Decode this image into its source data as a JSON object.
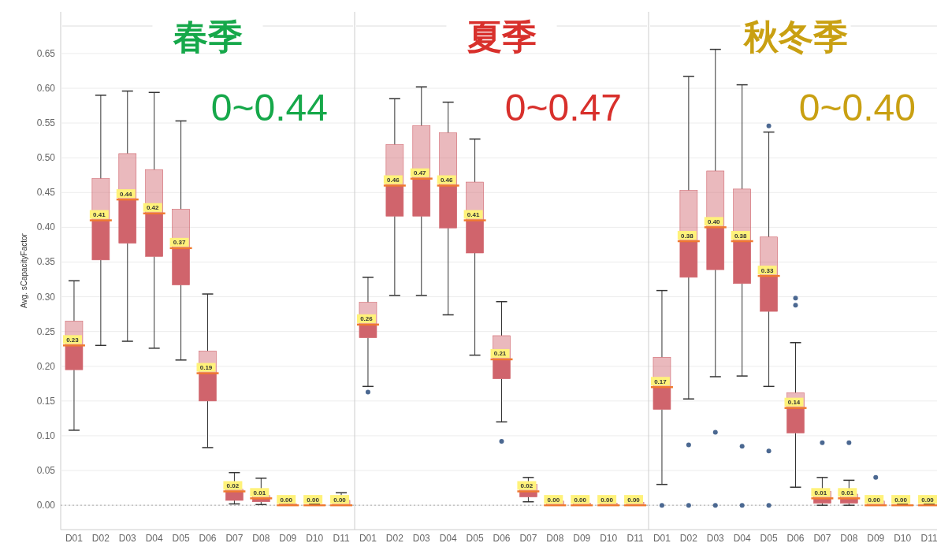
{
  "chart_data": [
    {
      "type": "box",
      "title": "春季",
      "ylabel": "Avg. sCapacityFactor",
      "annotations": [
        "0~0.44",
        {
          "text": "0.23",
          "x": "D01",
          "y": 0.23
        },
        {
          "text": "0.41",
          "x": "D02",
          "y": 0.41
        },
        {
          "text": "0.44",
          "x": "D03",
          "y": 0.44
        },
        {
          "text": "0.42",
          "x": "D04",
          "y": 0.42
        },
        {
          "text": "0.37",
          "x": "D05",
          "y": 0.37
        },
        {
          "text": "0.19",
          "x": "D06",
          "y": 0.19
        },
        {
          "text": "0.02",
          "x": "D07",
          "y": 0.02
        },
        {
          "text": "0.01",
          "x": "D08",
          "y": 0.01
        },
        {
          "text": "0.00",
          "x": "D09",
          "y": 0.0
        },
        {
          "text": "0.00",
          "x": "D10",
          "y": 0.0
        },
        {
          "text": "0.00",
          "x": "D11",
          "y": 0.0
        }
      ],
      "categories": [
        "D01",
        "D02",
        "D03",
        "D04",
        "D05",
        "D06",
        "D07",
        "D08",
        "D09",
        "D10",
        "D11"
      ],
      "ylim": [
        -0.035,
        0.71
      ],
      "yticks": [
        {
          "value": 0,
          "label": "0.00"
        },
        {
          "value": 0.05,
          "label": "0.05"
        },
        {
          "value": 0.1,
          "label": "0.10"
        },
        {
          "value": 0.15,
          "label": "0.15"
        },
        {
          "value": 0.2,
          "label": "0.20"
        },
        {
          "value": 0.25,
          "label": "0.25"
        },
        {
          "value": 0.3,
          "label": "0.30"
        },
        {
          "value": 0.35,
          "label": "0.35"
        },
        {
          "value": 0.4,
          "label": "0.40"
        },
        {
          "value": 0.45,
          "label": "0.45"
        },
        {
          "value": 0.5,
          "label": "0.50"
        },
        {
          "value": 0.55,
          "label": "0.55"
        },
        {
          "value": 0.6,
          "label": "0.60"
        },
        {
          "value": 0.65,
          "label": "0.65"
        }
      ],
      "grid": "y",
      "ref_lines": [
        {
          "axis": "y",
          "value": 0,
          "line_style": "dotted"
        }
      ],
      "series": [
        {
          "color": "#d0646c",
          "boxes": [
            {
              "low": 0.108,
              "q1": 0.195,
              "median": 0.23,
              "q3": 0.265,
              "high": 0.323
            },
            {
              "low": 0.23,
              "q1": 0.353,
              "median": 0.41,
              "q3": 0.47,
              "high": 0.59
            },
            {
              "low": 0.236,
              "q1": 0.377,
              "median": 0.44,
              "q3": 0.506,
              "high": 0.596
            },
            {
              "low": 0.226,
              "q1": 0.358,
              "median": 0.42,
              "q3": 0.483,
              "high": 0.594
            },
            {
              "low": 0.209,
              "q1": 0.317,
              "median": 0.37,
              "q3": 0.426,
              "high": 0.553
            },
            {
              "low": 0.083,
              "q1": 0.15,
              "median": 0.19,
              "q3": 0.222,
              "high": 0.304
            },
            {
              "low": 0.002,
              "q1": 0.007,
              "median": 0.02,
              "q3": 0.023,
              "high": 0.047
            },
            {
              "low": 0.001,
              "q1": 0.005,
              "median": 0.01,
              "q3": 0.014,
              "high": 0.039
            },
            {
              "low": 0,
              "q1": 0,
              "median": 0.0,
              "q3": 0.002,
              "high": 0.003
            },
            {
              "low": 0,
              "q1": 0,
              "median": 0.0,
              "q3": 0.001,
              "high": 0.002
            },
            {
              "low": 0,
              "q1": 0,
              "median": 0.0,
              "q3": 0.007,
              "high": 0.018
            }
          ]
        }
      ]
    },
    {
      "type": "box",
      "title": "夏季",
      "annotations": [
        "0~0.47",
        {
          "text": "0.26",
          "x": "D01",
          "y": 0.26
        },
        {
          "text": "0.46",
          "x": "D02",
          "y": 0.46
        },
        {
          "text": "0.47",
          "x": "D03",
          "y": 0.47
        },
        {
          "text": "0.46",
          "x": "D04",
          "y": 0.46
        },
        {
          "text": "0.41",
          "x": "D05",
          "y": 0.41
        },
        {
          "text": "0.21",
          "x": "D06",
          "y": 0.21
        },
        {
          "text": "0.02",
          "x": "D07",
          "y": 0.02
        },
        {
          "text": "0.00",
          "x": "D08",
          "y": 0.0
        },
        {
          "text": "0.00",
          "x": "D09",
          "y": 0.0
        },
        {
          "text": "0.00",
          "x": "D10",
          "y": 0.0
        },
        {
          "text": "0.00",
          "x": "D11",
          "y": 0.0
        }
      ],
      "categories": [
        "D01",
        "D02",
        "D03",
        "D04",
        "D05",
        "D06",
        "D07",
        "D08",
        "D09",
        "D10",
        "D11"
      ],
      "ylim": [
        -0.035,
        0.71
      ],
      "yticks": [
        0,
        0.05,
        0.1,
        0.15,
        0.2,
        0.25,
        0.3,
        0.35,
        0.4,
        0.45,
        0.5,
        0.55,
        0.6,
        0.65
      ],
      "tick_labels": "x",
      "grid": "y",
      "ref_lines": [
        {
          "axis": "y",
          "value": 0,
          "line_style": "dotted"
        }
      ],
      "series": [
        {
          "color": "#d0646c",
          "boxes": [
            {
              "low": 0.171,
              "q1": 0.241,
              "median": 0.26,
              "q3": 0.292,
              "high": 0.328,
              "outliers": [
                0.163
              ]
            },
            {
              "low": 0.302,
              "q1": 0.416,
              "median": 0.46,
              "q3": 0.519,
              "high": 0.585
            },
            {
              "low": 0.302,
              "q1": 0.416,
              "median": 0.47,
              "q3": 0.546,
              "high": 0.602
            },
            {
              "low": 0.274,
              "q1": 0.399,
              "median": 0.46,
              "q3": 0.536,
              "high": 0.58
            },
            {
              "low": 0.216,
              "q1": 0.363,
              "median": 0.41,
              "q3": 0.465,
              "high": 0.527
            },
            {
              "low": 0.12,
              "q1": 0.182,
              "median": 0.21,
              "q3": 0.244,
              "high": 0.293,
              "outliers": [
                0.092
              ]
            },
            {
              "low": 0.005,
              "q1": 0.012,
              "median": 0.02,
              "q3": 0.03,
              "high": 0.04
            },
            {
              "low": 0,
              "q1": 0,
              "median": 0.0,
              "q3": 0.006,
              "high": 0.008
            },
            {
              "low": 0,
              "q1": 0,
              "median": 0.0,
              "q3": 0.003,
              "high": 0.005
            },
            {
              "low": 0,
              "q1": 0,
              "median": 0.0,
              "q3": 0.003,
              "high": 0.005
            },
            {
              "low": 0,
              "q1": 0,
              "median": 0.0,
              "q3": 0.004,
              "high": 0.006
            }
          ]
        }
      ]
    },
    {
      "type": "box",
      "title": "秋冬季",
      "annotations": [
        "0~0.40",
        {
          "text": "0.17",
          "x": "D01",
          "y": 0.17
        },
        {
          "text": "0.38",
          "x": "D02",
          "y": 0.38
        },
        {
          "text": "0.40",
          "x": "D03",
          "y": 0.4
        },
        {
          "text": "0.38",
          "x": "D04",
          "y": 0.38
        },
        {
          "text": "0.33",
          "x": "D05",
          "y": 0.33
        },
        {
          "text": "0.14",
          "x": "D06",
          "y": 0.14
        },
        {
          "text": "0.01",
          "x": "D07",
          "y": 0.01
        },
        {
          "text": "0.01",
          "x": "D08",
          "y": 0.01
        },
        {
          "text": "0.00",
          "x": "D09",
          "y": 0.0
        },
        {
          "text": "0.00",
          "x": "D10",
          "y": 0.0
        },
        {
          "text": "0.00",
          "x": "D11",
          "y": 0.0
        }
      ],
      "categories": [
        "D01",
        "D02",
        "D03",
        "D04",
        "D05",
        "D06",
        "D07",
        "D08",
        "D09",
        "D10",
        "D11"
      ],
      "ylim": [
        -0.035,
        0.71
      ],
      "yticks": [
        0,
        0.05,
        0.1,
        0.15,
        0.2,
        0.25,
        0.3,
        0.35,
        0.4,
        0.45,
        0.5,
        0.55,
        0.6,
        0.65
      ],
      "tick_labels": "x",
      "grid": "y",
      "ref_lines": [
        {
          "axis": "y",
          "value": 0,
          "line_style": "dotted"
        }
      ],
      "series": [
        {
          "color": "#d0646c",
          "boxes": [
            {
              "low": 0.03,
              "q1": 0.138,
              "median": 0.17,
              "q3": 0.213,
              "high": 0.309,
              "outliers": [
                0.0
              ]
            },
            {
              "low": 0.153,
              "q1": 0.328,
              "median": 0.38,
              "q3": 0.453,
              "high": 0.617,
              "outliers": [
                0.087,
                0.0
              ]
            },
            {
              "low": 0.185,
              "q1": 0.339,
              "median": 0.4,
              "q3": 0.481,
              "high": 0.656,
              "outliers": [
                0.105,
                0.0
              ]
            },
            {
              "low": 0.186,
              "q1": 0.319,
              "median": 0.38,
              "q3": 0.455,
              "high": 0.605,
              "outliers": [
                0.085,
                0.0
              ]
            },
            {
              "low": 0.171,
              "q1": 0.279,
              "median": 0.33,
              "q3": 0.386,
              "high": 0.537,
              "outliers": [
                0.546,
                0.078,
                0.0
              ]
            },
            {
              "low": 0.026,
              "q1": 0.104,
              "median": 0.14,
              "q3": 0.162,
              "high": 0.234,
              "outliers": [
                0.298,
                0.288
              ]
            },
            {
              "low": 0,
              "q1": 0.003,
              "median": 0.01,
              "q3": 0.02,
              "high": 0.04,
              "outliers": [
                0.09
              ]
            },
            {
              "low": 0,
              "q1": 0.003,
              "median": 0.01,
              "q3": 0.016,
              "high": 0.036,
              "outliers": [
                0.09
              ]
            },
            {
              "low": 0,
              "q1": 0,
              "median": 0.0,
              "q3": 0.006,
              "high": 0.01,
              "outliers": [
                0.04
              ]
            },
            {
              "low": 0,
              "q1": 0,
              "median": 0.0,
              "q3": 0.001,
              "high": 0.002
            },
            {
              "low": 0,
              "q1": 0,
              "median": 0.0,
              "q3": 0.001,
              "high": 0.002
            }
          ]
        }
      ]
    }
  ]
}
